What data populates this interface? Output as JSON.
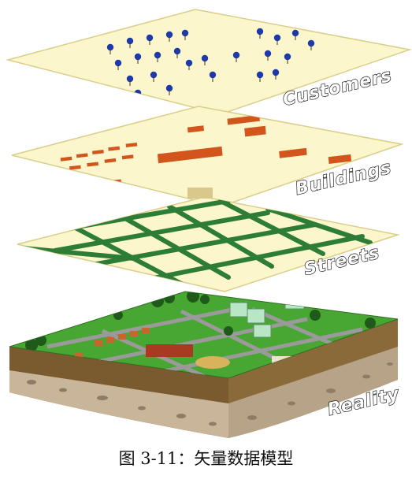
{
  "layers": [
    {
      "id": "customers",
      "label": "Customers"
    },
    {
      "id": "buildings",
      "label": "Buildings"
    },
    {
      "id": "streets",
      "label": "Streets"
    },
    {
      "id": "reality",
      "label": "Reality"
    }
  ],
  "caption": "图 3-11：矢量数据模型",
  "colors": {
    "plane": "#fbf6cc",
    "plane_edge": "#d9cf8a",
    "customer_dot": "#1d3aa8",
    "building": "#d2561b",
    "street": "#2e7d37",
    "grass": "#48a632",
    "soil": "#7a5a2f",
    "bedrock": "#c8b59a"
  }
}
